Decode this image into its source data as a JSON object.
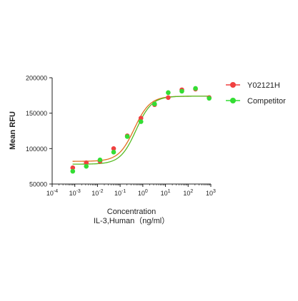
{
  "chart_data": {
    "type": "scatter",
    "title": "",
    "xlabel": "Concentration",
    "xlabel_line2": "IL-3,Human（ng/ml）",
    "ylabel": "Mean RFU",
    "x_scale": "log10",
    "xlim": [
      0.0001,
      1000
    ],
    "ylim": [
      50000,
      200000
    ],
    "x_ticks": [
      {
        "value": 0.0001,
        "base": "10",
        "exp": "-4"
      },
      {
        "value": 0.001,
        "base": "10",
        "exp": "-3"
      },
      {
        "value": 0.01,
        "base": "10",
        "exp": "-2"
      },
      {
        "value": 0.1,
        "base": "10",
        "exp": "-1"
      },
      {
        "value": 1,
        "base": "10",
        "exp": "0"
      },
      {
        "value": 10,
        "base": "10",
        "exp": "1"
      },
      {
        "value": 100,
        "base": "10",
        "exp": "2"
      },
      {
        "value": 1000,
        "base": "10",
        "exp": "3"
      }
    ],
    "y_ticks": [
      "50000",
      "100000",
      "150000",
      "200000"
    ],
    "y_tick_values": [
      50000,
      100000,
      150000,
      200000
    ],
    "legend_position": "right",
    "grid": false,
    "series": [
      {
        "name": "Y02121H",
        "color": "#f04040",
        "x": [
          0.00081,
          0.0032,
          0.0129,
          0.0516,
          0.206,
          0.826,
          3.3,
          13.2,
          52.8,
          211,
          845
        ],
        "y": [
          73000,
          80000,
          82000,
          100000,
          118000,
          143000,
          162000,
          172000,
          183000,
          184000,
          172000
        ],
        "fit": {
          "bottom": 82000,
          "top": 174000,
          "ec50": 0.42,
          "hill": 1.25
        }
      },
      {
        "name": "Competitor",
        "color": "#33dd33",
        "x": [
          0.00081,
          0.0032,
          0.0129,
          0.0516,
          0.206,
          0.826,
          3.3,
          13.2,
          52.8,
          211,
          845
        ],
        "y": [
          68000,
          75000,
          84000,
          95000,
          117000,
          138000,
          163000,
          179000,
          181000,
          185000,
          171000
        ],
        "fit": {
          "bottom": 78000,
          "top": 174000,
          "ec50": 0.5,
          "hill": 1.25
        }
      }
    ]
  }
}
